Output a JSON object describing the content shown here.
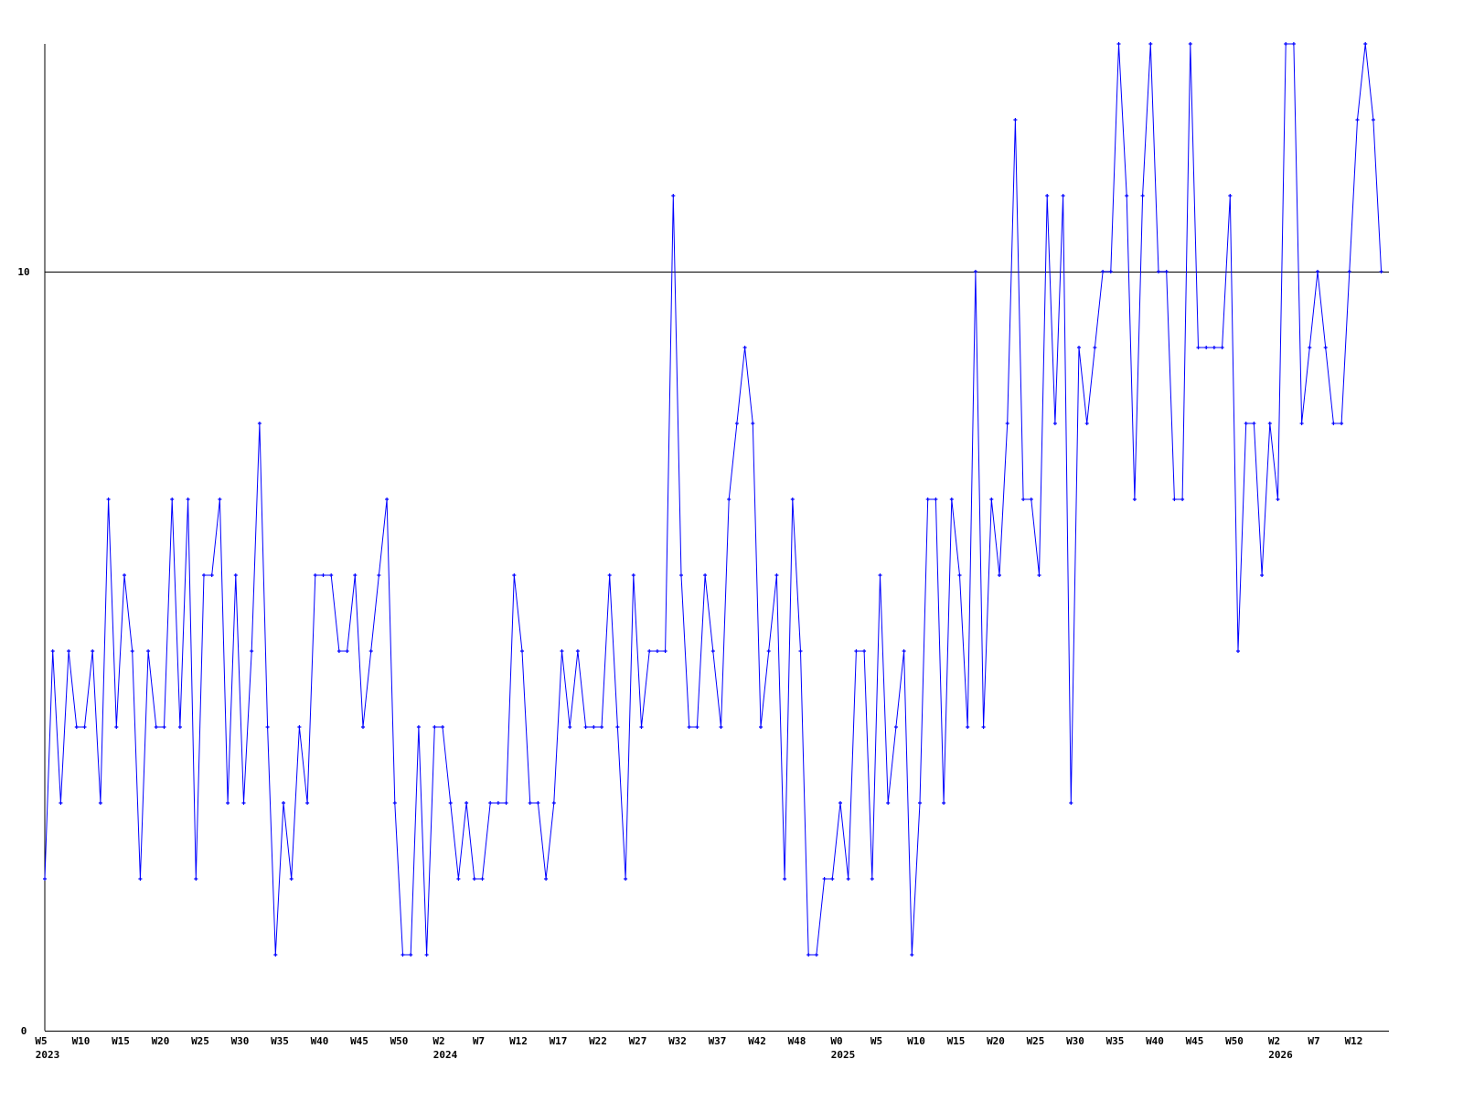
{
  "chart_data": {
    "type": "line",
    "title": "",
    "xlabel": "",
    "ylabel": "",
    "ylim": [
      0,
      13
    ],
    "y_ticks": [
      0,
      10
    ],
    "reference_line": 10,
    "grid": false,
    "colors": {
      "series": "#0000ff",
      "axis": "#000000"
    },
    "x_tick_labels": [
      {
        "index": 0,
        "label": "W5"
      },
      {
        "index": 5,
        "label": "W10"
      },
      {
        "index": 10,
        "label": "W15"
      },
      {
        "index": 15,
        "label": "W20"
      },
      {
        "index": 20,
        "label": "W25"
      },
      {
        "index": 25,
        "label": "W30"
      },
      {
        "index": 30,
        "label": "W35"
      },
      {
        "index": 35,
        "label": "W40"
      },
      {
        "index": 40,
        "label": "W45"
      },
      {
        "index": 45,
        "label": "W50"
      },
      {
        "index": 50,
        "label": "W2"
      },
      {
        "index": 55,
        "label": "W7"
      },
      {
        "index": 60,
        "label": "W12"
      },
      {
        "index": 65,
        "label": "W17"
      },
      {
        "index": 70,
        "label": "W22"
      },
      {
        "index": 75,
        "label": "W27"
      },
      {
        "index": 80,
        "label": "W32"
      },
      {
        "index": 85,
        "label": "W37"
      },
      {
        "index": 90,
        "label": "W42"
      },
      {
        "index": 95,
        "label": "W48"
      },
      {
        "index": 100,
        "label": "W0"
      },
      {
        "index": 105,
        "label": "W5"
      },
      {
        "index": 110,
        "label": "W10"
      },
      {
        "index": 115,
        "label": "W15"
      },
      {
        "index": 120,
        "label": "W20"
      },
      {
        "index": 125,
        "label": "W25"
      },
      {
        "index": 130,
        "label": "W30"
      },
      {
        "index": 135,
        "label": "W35"
      },
      {
        "index": 140,
        "label": "W40"
      },
      {
        "index": 145,
        "label": "W45"
      },
      {
        "index": 150,
        "label": "W50"
      },
      {
        "index": 155,
        "label": "W2"
      },
      {
        "index": 160,
        "label": "W7"
      },
      {
        "index": 165,
        "label": "W12"
      }
    ],
    "year_labels": [
      {
        "index": 0,
        "label": "2023"
      },
      {
        "index": 50,
        "label": "2024"
      },
      {
        "index": 100,
        "label": "2025"
      },
      {
        "index": 155,
        "label": "2026"
      }
    ],
    "values": [
      2,
      5,
      3,
      5,
      4,
      4,
      5,
      3,
      7,
      4,
      6,
      5,
      2,
      5,
      4,
      4,
      7,
      4,
      7,
      2,
      6,
      6,
      7,
      3,
      6,
      3,
      5,
      8,
      4,
      1,
      3,
      2,
      4,
      3,
      6,
      6,
      6,
      5,
      5,
      6,
      4,
      5,
      6,
      7,
      3,
      1,
      1,
      4,
      1,
      4,
      4,
      3,
      2,
      3,
      2,
      2,
      3,
      3,
      3,
      6,
      5,
      3,
      3,
      2,
      3,
      5,
      4,
      5,
      4,
      4,
      4,
      6,
      4,
      2,
      6,
      4,
      5,
      5,
      5,
      11,
      6,
      4,
      4,
      6,
      5,
      4,
      7,
      8,
      9,
      8,
      4,
      5,
      6,
      2,
      7,
      5,
      1,
      1,
      2,
      2,
      3,
      2,
      5,
      5,
      2,
      6,
      3,
      4,
      5,
      1,
      3,
      7,
      7,
      3,
      7,
      6,
      4,
      10,
      4,
      7,
      6,
      8,
      12,
      7,
      7,
      6,
      11,
      8,
      11,
      3,
      9,
      8,
      9,
      10,
      10,
      13,
      11,
      7,
      11,
      13,
      10,
      10,
      7,
      7,
      13,
      9,
      9,
      9,
      9,
      11,
      5,
      8,
      8,
      6,
      8,
      7,
      13,
      13,
      8,
      9,
      10,
      9,
      8,
      8,
      10,
      12,
      13,
      12,
      10
    ]
  }
}
